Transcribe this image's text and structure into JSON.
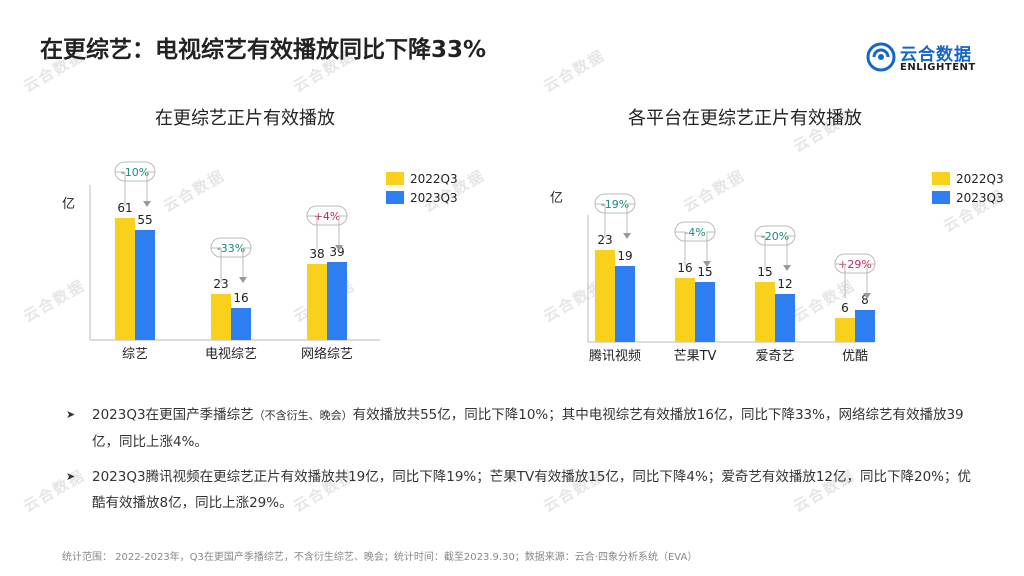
{
  "page": {
    "title": "在更综艺：电视综艺有效播放同比下降33%",
    "logo_cn": "云合数据",
    "logo_en": "ENLIGHTENT",
    "footer": "统计范围：  2022-2023年，Q3在更国产季播综艺，不含衍生综艺、晚会；统计时间：截至2023.9.30；数据来源：云合·四象分析系统（EVA）"
  },
  "colors": {
    "q2022": "#f9d01a",
    "q2023": "#2d7ef0",
    "neg": "#1b8a80",
    "pos": "#c0285a"
  },
  "bullets": [
    {
      "pre": "2023Q3在更国产季播综艺",
      "small": "（不含衍生、晚会）",
      "post": "有效播放共55亿，同比下降10%；其中电视综艺有效播放16亿，同比下降33%，网络综艺有效播放39亿，同比上涨4%。"
    },
    {
      "pre": "2023Q3腾讯视频在更综艺正片有效播放共19亿，同比下降19%；芒果TV有效播放15亿，同比下降4%；爱奇艺有效播放12亿，同比下降20%；优酷有效播放8亿，同比上涨29%。",
      "small": "",
      "post": ""
    }
  ],
  "chart_data": [
    {
      "type": "bar",
      "title": "在更综艺正片有效播放",
      "ylabel": "亿",
      "categories": [
        "综艺",
        "电视综艺",
        "网络综艺"
      ],
      "series": [
        {
          "name": "2022Q3",
          "values": [
            61,
            23,
            38
          ]
        },
        {
          "name": "2023Q3",
          "values": [
            55,
            16,
            39
          ]
        }
      ],
      "changes": [
        "-10%",
        "-33%",
        "+4%"
      ],
      "ylim": [
        0,
        70
      ],
      "legend": "top-right",
      "grid": false
    },
    {
      "type": "bar",
      "title": "各平台在更综艺正片有效播放",
      "ylabel": "亿",
      "categories": [
        "腾讯视频",
        "芒果TV",
        "爱奇艺",
        "优酷"
      ],
      "series": [
        {
          "name": "2022Q3",
          "values": [
            23,
            16,
            15,
            6
          ]
        },
        {
          "name": "2023Q3",
          "values": [
            19,
            15,
            12,
            8
          ]
        }
      ],
      "changes": [
        "-19%",
        "-4%",
        "-20%",
        "+29%"
      ],
      "ylim": [
        0,
        28
      ],
      "legend": "top-right",
      "grid": false
    }
  ]
}
